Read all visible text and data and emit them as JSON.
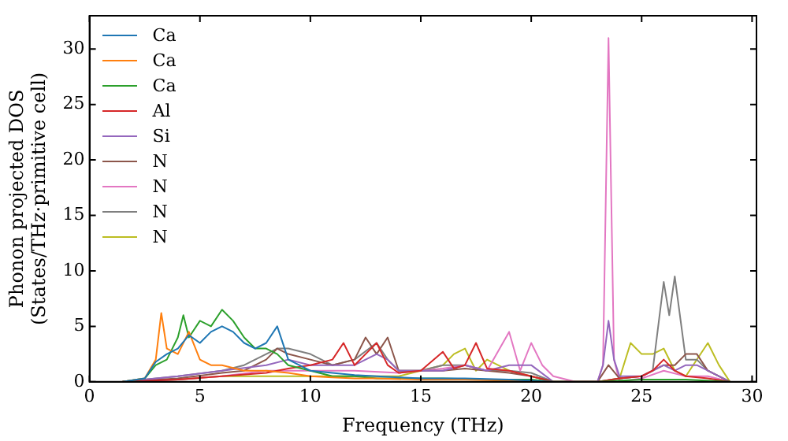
{
  "chart_data": {
    "type": "line",
    "xlabel": "Frequency (THz)",
    "ylabel": "Phonon projected DOS\n(States/THz·primitive cell)",
    "xlim": [
      0,
      30.2
    ],
    "ylim": [
      0,
      33
    ],
    "xticks": [
      0,
      5,
      10,
      15,
      20,
      25,
      30
    ],
    "yticks": [
      0,
      5,
      10,
      15,
      20,
      25,
      30
    ],
    "grid": false,
    "legend": "top left",
    "marker": "none",
    "line_style": "solid",
    "series": [
      {
        "name": "Ca",
        "color": "#1f77b4",
        "x": [
          1.5,
          2.5,
          3,
          3.5,
          4,
          4.5,
          5,
          5.5,
          6,
          6.5,
          7,
          7.5,
          8,
          8.5,
          9,
          9.5,
          10,
          11,
          12,
          13,
          14,
          15,
          17,
          19,
          21
        ],
        "values": [
          0,
          0.3,
          1.8,
          2.5,
          3,
          4.2,
          3.5,
          4.5,
          5,
          4.5,
          3.5,
          3,
          3.5,
          5,
          2,
          1.5,
          1,
          0.8,
          0.6,
          0.5,
          0.4,
          0.3,
          0.3,
          0.2,
          0
        ]
      },
      {
        "name": "Ca",
        "color": "#ff7f0e",
        "x": [
          1.5,
          2.5,
          3,
          3.25,
          3.5,
          4,
          4.5,
          5,
          5.5,
          6,
          7,
          8,
          9,
          10,
          11,
          12,
          13,
          15,
          17,
          19,
          21
        ],
        "values": [
          0,
          0.3,
          2,
          6.2,
          3,
          2.5,
          4.5,
          2,
          1.5,
          1.5,
          1,
          1,
          0.8,
          0.5,
          0.4,
          0.3,
          0.3,
          0.2,
          0.2,
          0.1,
          0
        ]
      },
      {
        "name": "Ca",
        "color": "#2ca02c",
        "x": [
          1.5,
          2.5,
          3,
          3.5,
          4,
          4.25,
          4.5,
          5,
          5.5,
          6,
          6.5,
          7,
          7.5,
          8,
          8.5,
          9,
          10,
          11,
          12,
          13,
          14,
          16,
          18,
          20,
          21,
          23,
          25,
          27,
          29
        ],
        "values": [
          0,
          0.3,
          1.5,
          2,
          4,
          6,
          4,
          5.5,
          5,
          6.5,
          5.5,
          4,
          3,
          3,
          2.5,
          1.5,
          1,
          0.5,
          0.5,
          0.3,
          0.3,
          0.3,
          0.2,
          0.2,
          0,
          0,
          0.2,
          0.2,
          0
        ]
      },
      {
        "name": "Al",
        "color": "#d62728",
        "x": [
          1.5,
          4,
          6,
          8,
          9,
          10,
          11,
          11.5,
          12,
          12.5,
          13,
          13.5,
          14,
          15,
          16,
          16.5,
          17,
          17.5,
          18,
          19,
          20,
          21,
          23,
          24,
          25,
          25.5,
          26,
          26.5,
          27,
          28,
          29
        ],
        "values": [
          0,
          0.2,
          0.5,
          0.8,
          1.2,
          1.5,
          2,
          3.5,
          1.5,
          2.5,
          3.5,
          1.5,
          0.8,
          1,
          2.7,
          1.2,
          1.5,
          3.5,
          1.2,
          1,
          0.5,
          0,
          0,
          0.3,
          0.5,
          1,
          2,
          1,
          0.5,
          0.3,
          0
        ]
      },
      {
        "name": "Si",
        "color": "#9467bd",
        "x": [
          1.5,
          4,
          6,
          8,
          9,
          10,
          11,
          12,
          12.5,
          13,
          13.5,
          14,
          15,
          16,
          17,
          18,
          19,
          20,
          21,
          23,
          23.25,
          23.5,
          23.75,
          24,
          25,
          26,
          26.5,
          27,
          27.5,
          28,
          29
        ],
        "values": [
          0,
          0.5,
          1,
          1.5,
          2,
          1.5,
          1.5,
          1.5,
          2,
          2.5,
          2,
          1,
          1,
          1,
          1.5,
          1,
          1.5,
          1.5,
          0,
          0,
          1.5,
          5.5,
          2,
          0.5,
          0.5,
          1.5,
          1,
          1.5,
          1.5,
          1,
          0
        ]
      },
      {
        "name": "N",
        "color": "#8c564b",
        "x": [
          1.5,
          4,
          6,
          7,
          8,
          8.5,
          9,
          10,
          11,
          12,
          12.5,
          13,
          13.5,
          14,
          15,
          16,
          17,
          18,
          19,
          20,
          21,
          23,
          23.5,
          24,
          25,
          26,
          26.5,
          27,
          27.5,
          28,
          29
        ],
        "values": [
          0,
          0.3,
          0.8,
          1,
          2,
          3,
          2.5,
          2,
          1.5,
          2,
          4,
          2.5,
          4,
          1,
          1,
          1,
          1.2,
          1,
          0.8,
          0.5,
          0,
          0,
          1.5,
          0.3,
          0.5,
          1.5,
          1.5,
          2.5,
          2.5,
          1,
          0
        ]
      },
      {
        "name": "N",
        "color": "#e377c2",
        "x": [
          1.5,
          4,
          6,
          8,
          10,
          12,
          14,
          16,
          17,
          18,
          19,
          19.5,
          20,
          20.5,
          21,
          22,
          23,
          23.25,
          23.5,
          23.75,
          24,
          25,
          26,
          27,
          28,
          29
        ],
        "values": [
          0,
          0.2,
          0.5,
          1,
          1,
          1,
          0.8,
          1.2,
          1.5,
          1,
          4.5,
          1,
          3.5,
          1.5,
          0.5,
          0,
          0,
          1.5,
          31,
          2,
          0,
          0.3,
          1,
          0.5,
          0.5,
          0
        ]
      },
      {
        "name": "N",
        "color": "#7f7f7f",
        "x": [
          1.5,
          4,
          6,
          7,
          8,
          8.5,
          9,
          10,
          11,
          12,
          13,
          13.5,
          14,
          15,
          16,
          17,
          18,
          19,
          20,
          21,
          23,
          24,
          25,
          25.5,
          26,
          26.25,
          26.5,
          27,
          27.5,
          28,
          29
        ],
        "values": [
          0,
          0.5,
          1,
          1.5,
          2.5,
          3,
          3,
          2.5,
          1.5,
          2,
          3.5,
          2,
          1,
          1,
          1.5,
          1.5,
          1,
          1,
          0.8,
          0,
          0,
          0.3,
          0.5,
          1,
          9,
          6,
          9.5,
          2,
          2,
          1,
          0
        ]
      },
      {
        "name": "N",
        "color": "#bcbd22",
        "x": [
          1.5,
          4,
          6,
          8,
          10,
          12,
          13,
          14,
          15,
          16,
          16.5,
          17,
          17.5,
          18,
          19,
          20,
          21,
          23,
          24,
          24.5,
          25,
          25.5,
          26,
          26.5,
          27,
          28,
          28.5,
          29
        ],
        "values": [
          0,
          0.2,
          0.5,
          0.5,
          0.5,
          0.5,
          0.5,
          0.5,
          1,
          1.5,
          2.5,
          3,
          1,
          2,
          1,
          0.5,
          0,
          0,
          0.3,
          3.5,
          2.5,
          2.5,
          3,
          1,
          0.5,
          3.5,
          1.5,
          0
        ]
      }
    ]
  }
}
